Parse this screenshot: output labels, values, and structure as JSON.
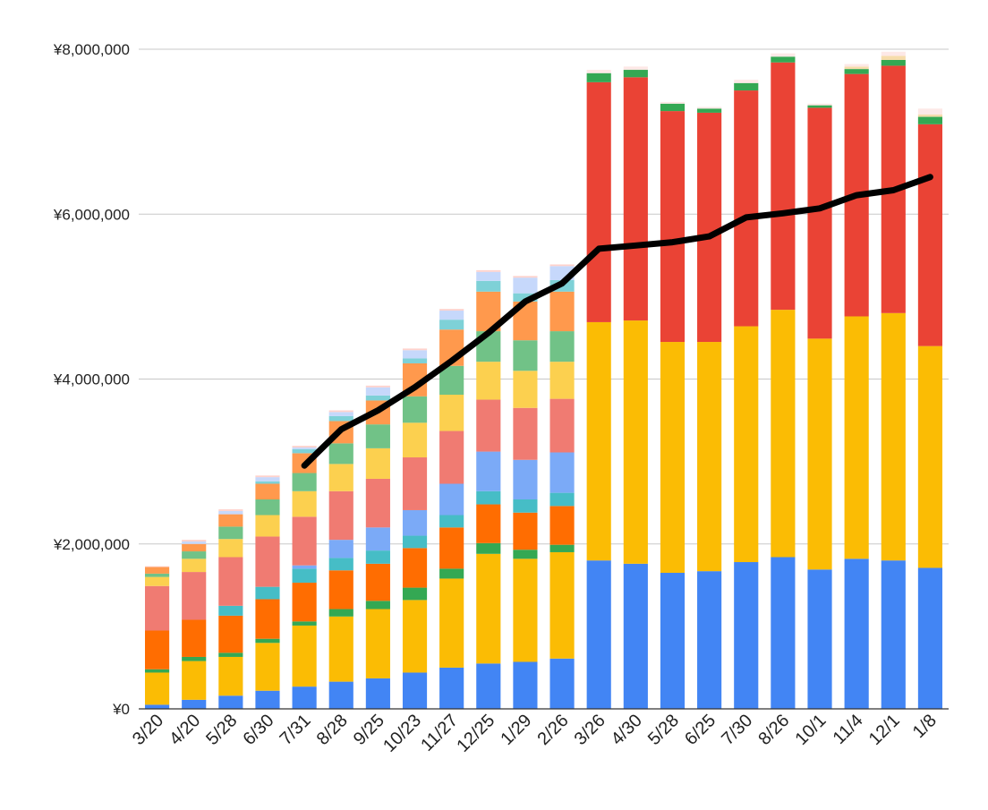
{
  "chart_data": {
    "type": "bar",
    "stacked": true,
    "categories": [
      "3/20",
      "4/20",
      "5/28",
      "6/30",
      "7/31",
      "8/28",
      "9/25",
      "10/23",
      "11/27",
      "12/25",
      "1/29",
      "2/26",
      "3/26",
      "4/30",
      "5/28",
      "6/25",
      "7/30",
      "8/26",
      "10/1",
      "11/4",
      "12/1",
      "1/8"
    ],
    "y_tick_labels": [
      "¥0",
      "¥2,000,000",
      "¥4,000,000",
      "¥6,000,000",
      "¥8,000,000"
    ],
    "y_tick_values": [
      0,
      2000000,
      4000000,
      6000000,
      8000000
    ],
    "ylim": [
      0,
      8000000
    ],
    "grid": true,
    "legend": "none",
    "title": "",
    "xlabel": "",
    "ylabel": "",
    "series": [
      {
        "color": "#4285f4",
        "values": [
          50000,
          110000,
          160000,
          220000,
          270000,
          330000,
          370000,
          440000,
          500000,
          550000,
          570000,
          610000,
          1800000,
          1760000,
          1650000,
          1670000,
          1780000,
          1840000,
          1690000,
          1820000,
          1800000,
          1710000
        ]
      },
      {
        "color": "#fbbc04",
        "values": [
          390000,
          470000,
          470000,
          580000,
          740000,
          790000,
          840000,
          880000,
          1080000,
          1330000,
          1250000,
          1290000,
          2890000,
          2950000,
          2800000,
          2780000,
          2860000,
          3000000,
          2800000,
          2940000,
          3000000,
          2690000
        ]
      },
      {
        "color": "#34a853",
        "values": [
          40000,
          50000,
          50000,
          50000,
          50000,
          90000,
          100000,
          150000,
          120000,
          130000,
          110000,
          90000,
          0,
          0,
          0,
          0,
          0,
          0,
          0,
          0,
          0,
          0
        ]
      },
      {
        "color": "#ff6d01",
        "values": [
          470000,
          450000,
          450000,
          480000,
          470000,
          470000,
          450000,
          480000,
          500000,
          470000,
          450000,
          470000,
          0,
          0,
          0,
          0,
          0,
          0,
          0,
          0,
          0,
          0
        ]
      },
      {
        "color": "#46bdc6",
        "values": [
          0,
          0,
          120000,
          150000,
          170000,
          150000,
          160000,
          150000,
          150000,
          160000,
          160000,
          160000,
          0,
          0,
          0,
          0,
          0,
          0,
          0,
          0,
          0,
          0
        ]
      },
      {
        "color": "#7baaf7",
        "values": [
          0,
          0,
          0,
          0,
          40000,
          220000,
          280000,
          310000,
          380000,
          480000,
          480000,
          490000,
          0,
          0,
          0,
          0,
          0,
          0,
          0,
          0,
          0,
          0
        ]
      },
      {
        "color": "#f07b72",
        "values": [
          540000,
          580000,
          590000,
          610000,
          590000,
          590000,
          590000,
          640000,
          640000,
          630000,
          630000,
          650000,
          0,
          0,
          0,
          0,
          0,
          0,
          0,
          0,
          0,
          0
        ]
      },
      {
        "color": "#fcd04f",
        "values": [
          110000,
          160000,
          220000,
          260000,
          310000,
          330000,
          370000,
          420000,
          440000,
          460000,
          450000,
          450000,
          0,
          0,
          0,
          0,
          0,
          0,
          0,
          0,
          0,
          0
        ]
      },
      {
        "color": "#71c287",
        "values": [
          40000,
          90000,
          150000,
          190000,
          220000,
          250000,
          290000,
          320000,
          350000,
          370000,
          370000,
          370000,
          0,
          0,
          0,
          0,
          0,
          0,
          0,
          0,
          0,
          0
        ]
      },
      {
        "color": "#ff994d",
        "values": [
          80000,
          90000,
          150000,
          190000,
          240000,
          270000,
          290000,
          400000,
          440000,
          480000,
          470000,
          480000,
          0,
          0,
          0,
          0,
          0,
          0,
          0,
          0,
          0,
          0
        ]
      },
      {
        "color": "#7ed1d7",
        "values": [
          0,
          0,
          0,
          30000,
          50000,
          60000,
          60000,
          60000,
          120000,
          130000,
          100000,
          140000,
          0,
          0,
          0,
          0,
          0,
          0,
          0,
          0,
          0,
          0
        ]
      },
      {
        "color": "#c6d8fb",
        "values": [
          0,
          30000,
          40000,
          50000,
          20000,
          50000,
          100000,
          100000,
          110000,
          110000,
          190000,
          170000,
          0,
          0,
          0,
          0,
          0,
          0,
          0,
          0,
          0,
          0
        ]
      },
      {
        "color": "#ffd2cc",
        "values": [
          10000,
          20000,
          20000,
          20000,
          20000,
          20000,
          20000,
          20000,
          20000,
          20000,
          20000,
          20000,
          0,
          0,
          0,
          0,
          0,
          0,
          0,
          0,
          0,
          0
        ]
      },
      {
        "color": "#ea4335",
        "values": [
          0,
          0,
          0,
          0,
          0,
          0,
          0,
          0,
          0,
          0,
          0,
          0,
          2910000,
          2950000,
          2800000,
          2780000,
          2860000,
          3000000,
          2800000,
          2940000,
          3000000,
          2690000
        ]
      },
      {
        "color": "#34a853",
        "values": [
          0,
          0,
          0,
          0,
          0,
          0,
          0,
          0,
          0,
          0,
          0,
          0,
          110000,
          90000,
          90000,
          50000,
          90000,
          70000,
          30000,
          60000,
          70000,
          90000
        ]
      },
      {
        "color": "#f6dcab",
        "values": [
          0,
          0,
          0,
          0,
          0,
          0,
          0,
          0,
          0,
          0,
          0,
          0,
          0,
          0,
          0,
          0,
          0,
          0,
          0,
          30000,
          50000,
          30000
        ]
      },
      {
        "color": "#fde8e6",
        "values": [
          0,
          0,
          0,
          0,
          0,
          0,
          0,
          0,
          0,
          0,
          0,
          0,
          40000,
          40000,
          20000,
          20000,
          40000,
          40000,
          20000,
          30000,
          50000,
          70000
        ]
      }
    ],
    "line": {
      "color": "#000000",
      "start_index": 4,
      "values": [
        null,
        null,
        null,
        null,
        2950000,
        3390000,
        3620000,
        3900000,
        4220000,
        4560000,
        4940000,
        5160000,
        5580000,
        5620000,
        5660000,
        5730000,
        5960000,
        6010000,
        6070000,
        6230000,
        6290000,
        6450000
      ]
    }
  }
}
